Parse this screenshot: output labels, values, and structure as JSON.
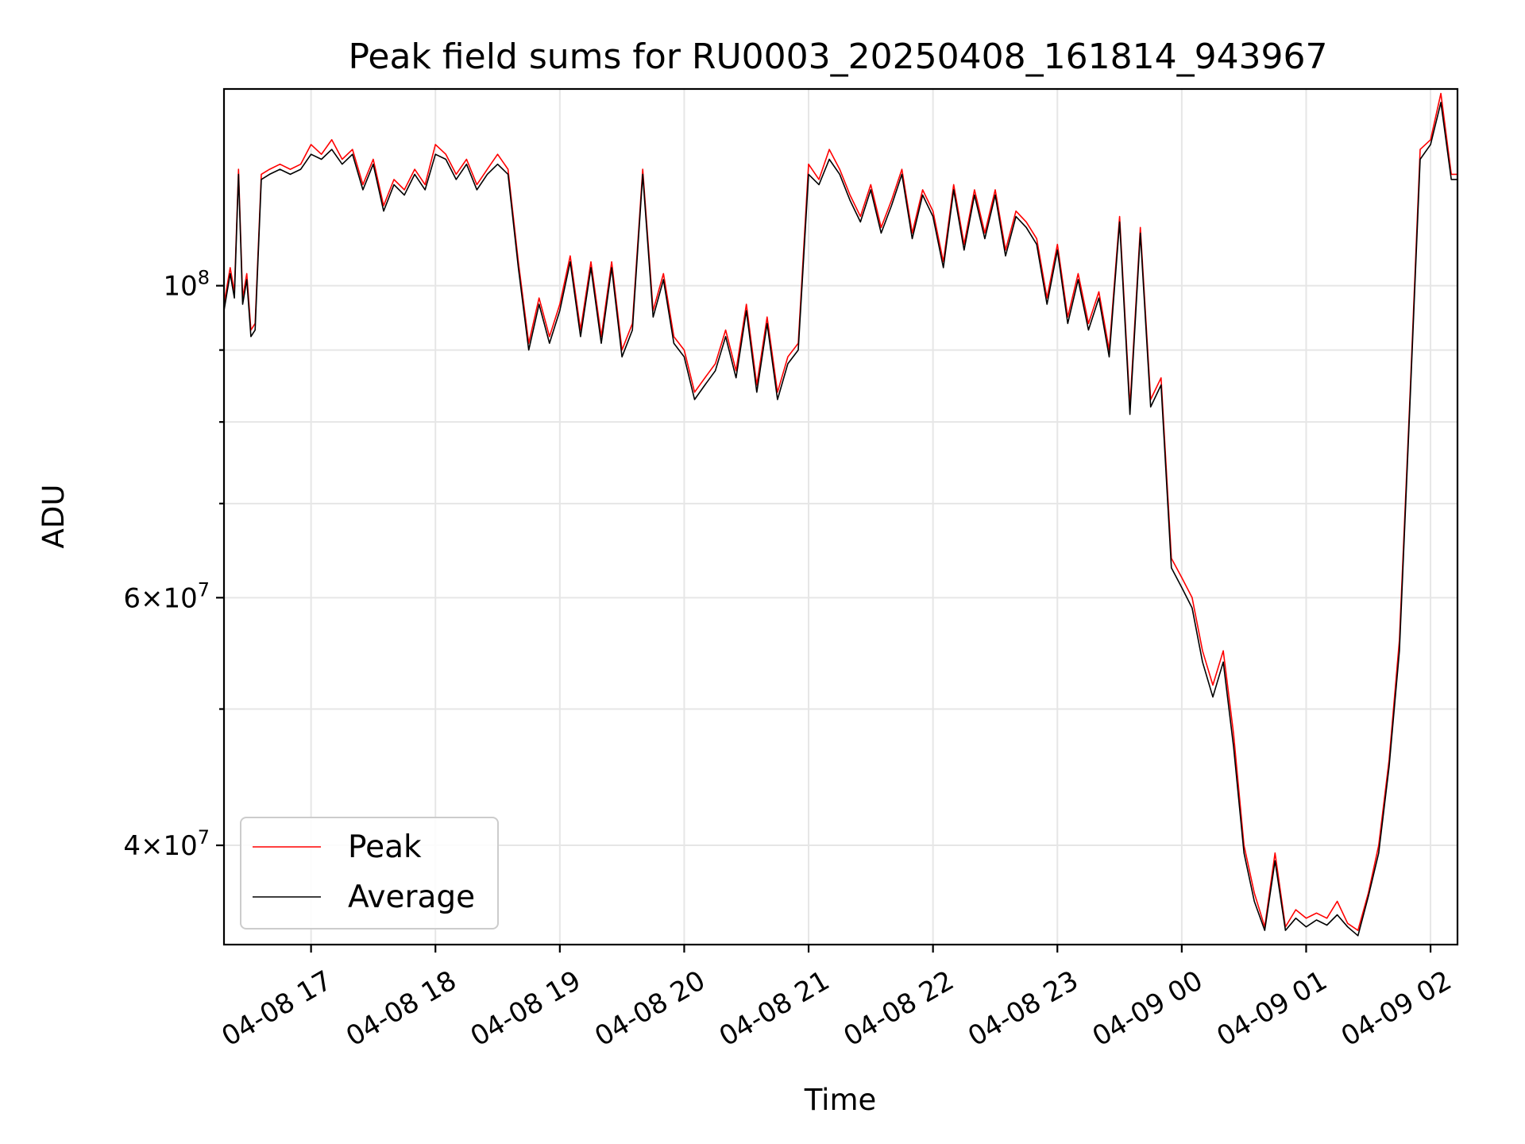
{
  "chart_data": {
    "type": "line",
    "title": "Peak field sums for RU0003_20250408_161814_943967",
    "xlabel": "Time",
    "ylabel": "ADU",
    "y_scale": "log",
    "ylim": [
      34000000,
      138000000
    ],
    "xlim": [
      "2025-04-08 16:18",
      "2025-04-09 02:13"
    ],
    "grid": true,
    "legend_position": "lower left",
    "x_ticks": [
      {
        "time": "2025-04-08 17:00",
        "label": "04-08 17"
      },
      {
        "time": "2025-04-08 18:00",
        "label": "04-08 18"
      },
      {
        "time": "2025-04-08 19:00",
        "label": "04-08 19"
      },
      {
        "time": "2025-04-08 20:00",
        "label": "04-08 20"
      },
      {
        "time": "2025-04-08 21:00",
        "label": "04-08 21"
      },
      {
        "time": "2025-04-08 22:00",
        "label": "04-08 22"
      },
      {
        "time": "2025-04-08 23:00",
        "label": "04-08 23"
      },
      {
        "time": "2025-04-09 00:00",
        "label": "04-09 00"
      },
      {
        "time": "2025-04-09 01:00",
        "label": "04-09 01"
      },
      {
        "time": "2025-04-09 02:00",
        "label": "04-09 02"
      }
    ],
    "y_ticks": [
      {
        "value": 100000000,
        "mantissa": "",
        "exponent": "8"
      },
      {
        "value": 60000000,
        "mantissa": "6",
        "exponent": "7"
      },
      {
        "value": 40000000,
        "mantissa": "4",
        "exponent": "7"
      }
    ],
    "y_minor_ticks": [
      50000000,
      70000000,
      80000000,
      90000000
    ],
    "series": [
      {
        "name": "Peak",
        "color": "#ff0000",
        "x": [
          "2025-04-08 16:18",
          "2025-04-08 16:21",
          "2025-04-08 16:23",
          "2025-04-08 16:25",
          "2025-04-08 16:27",
          "2025-04-08 16:29",
          "2025-04-08 16:31",
          "2025-04-08 16:33",
          "2025-04-08 16:36",
          "2025-04-08 16:40",
          "2025-04-08 16:45",
          "2025-04-08 16:50",
          "2025-04-08 16:55",
          "2025-04-08 17:00",
          "2025-04-08 17:05",
          "2025-04-08 17:10",
          "2025-04-08 17:15",
          "2025-04-08 17:20",
          "2025-04-08 17:25",
          "2025-04-08 17:30",
          "2025-04-08 17:35",
          "2025-04-08 17:40",
          "2025-04-08 17:45",
          "2025-04-08 17:50",
          "2025-04-08 17:55",
          "2025-04-08 18:00",
          "2025-04-08 18:05",
          "2025-04-08 18:10",
          "2025-04-08 18:15",
          "2025-04-08 18:20",
          "2025-04-08 18:25",
          "2025-04-08 18:30",
          "2025-04-08 18:35",
          "2025-04-08 18:40",
          "2025-04-08 18:45",
          "2025-04-08 18:50",
          "2025-04-08 18:55",
          "2025-04-08 19:00",
          "2025-04-08 19:05",
          "2025-04-08 19:10",
          "2025-04-08 19:15",
          "2025-04-08 19:20",
          "2025-04-08 19:25",
          "2025-04-08 19:30",
          "2025-04-08 19:35",
          "2025-04-08 19:40",
          "2025-04-08 19:45",
          "2025-04-08 19:50",
          "2025-04-08 19:55",
          "2025-04-08 20:00",
          "2025-04-08 20:05",
          "2025-04-08 20:10",
          "2025-04-08 20:15",
          "2025-04-08 20:20",
          "2025-04-08 20:25",
          "2025-04-08 20:30",
          "2025-04-08 20:35",
          "2025-04-08 20:40",
          "2025-04-08 20:45",
          "2025-04-08 20:50",
          "2025-04-08 20:55",
          "2025-04-08 21:00",
          "2025-04-08 21:05",
          "2025-04-08 21:10",
          "2025-04-08 21:15",
          "2025-04-08 21:20",
          "2025-04-08 21:25",
          "2025-04-08 21:30",
          "2025-04-08 21:35",
          "2025-04-08 21:40",
          "2025-04-08 21:45",
          "2025-04-08 21:50",
          "2025-04-08 21:55",
          "2025-04-08 22:00",
          "2025-04-08 22:05",
          "2025-04-08 22:10",
          "2025-04-08 22:15",
          "2025-04-08 22:20",
          "2025-04-08 22:25",
          "2025-04-08 22:30",
          "2025-04-08 22:35",
          "2025-04-08 22:40",
          "2025-04-08 22:45",
          "2025-04-08 22:50",
          "2025-04-08 22:55",
          "2025-04-08 23:00",
          "2025-04-08 23:05",
          "2025-04-08 23:10",
          "2025-04-08 23:15",
          "2025-04-08 23:20",
          "2025-04-08 23:25",
          "2025-04-08 23:30",
          "2025-04-08 23:35",
          "2025-04-08 23:40",
          "2025-04-08 23:45",
          "2025-04-08 23:50",
          "2025-04-08 23:55",
          "2025-04-09 00:00",
          "2025-04-09 00:05",
          "2025-04-09 00:10",
          "2025-04-09 00:15",
          "2025-04-09 00:20",
          "2025-04-09 00:25",
          "2025-04-09 00:30",
          "2025-04-09 00:35",
          "2025-04-09 00:40",
          "2025-04-09 00:45",
          "2025-04-09 00:50",
          "2025-04-09 00:55",
          "2025-04-09 01:00",
          "2025-04-09 01:05",
          "2025-04-09 01:10",
          "2025-04-09 01:15",
          "2025-04-09 01:20",
          "2025-04-09 01:25",
          "2025-04-09 01:30",
          "2025-04-09 01:35",
          "2025-04-09 01:40",
          "2025-04-09 01:45",
          "2025-04-09 01:50",
          "2025-04-09 01:55",
          "2025-04-09 02:00",
          "2025-04-09 02:05",
          "2025-04-09 02:10",
          "2025-04-09 02:13"
        ],
        "y": [
          97000000,
          103000000,
          99000000,
          121000000,
          98000000,
          102000000,
          93000000,
          94000000,
          120000000,
          121000000,
          122000000,
          121000000,
          122000000,
          126000000,
          124000000,
          127000000,
          123000000,
          125000000,
          118000000,
          123000000,
          114000000,
          119000000,
          117000000,
          121000000,
          118000000,
          126000000,
          124000000,
          120000000,
          123000000,
          118000000,
          121000000,
          124000000,
          121000000,
          104000000,
          91000000,
          98000000,
          92000000,
          97000000,
          105000000,
          93000000,
          104000000,
          92000000,
          104000000,
          90000000,
          94000000,
          121000000,
          96000000,
          102000000,
          92000000,
          90000000,
          84000000,
          86000000,
          88000000,
          93000000,
          87000000,
          97000000,
          85000000,
          95000000,
          84000000,
          89000000,
          91000000,
          122000000,
          119000000,
          125000000,
          121000000,
          116000000,
          112000000,
          118000000,
          110000000,
          115000000,
          121000000,
          109000000,
          117000000,
          113000000,
          104000000,
          118000000,
          107000000,
          117000000,
          109000000,
          117000000,
          106000000,
          113000000,
          111000000,
          108000000,
          98000000,
          107000000,
          95000000,
          102000000,
          94000000,
          99000000,
          90000000,
          112000000,
          82000000,
          110000000,
          83000000,
          86000000,
          64000000,
          62000000,
          60000000,
          55000000,
          52000000,
          55000000,
          48000000,
          40000000,
          37000000,
          35000000,
          39500000,
          35000000,
          36000000,
          35500000,
          35800000,
          35500000,
          36500000,
          35200000,
          34800000,
          37000000,
          40000000,
          46000000,
          56000000,
          83000000,
          125000000,
          127000000,
          137000000,
          120000000,
          120000000
        ]
      },
      {
        "name": "Average",
        "color": "#000000",
        "x": [
          "2025-04-08 16:18",
          "2025-04-08 16:21",
          "2025-04-08 16:23",
          "2025-04-08 16:25",
          "2025-04-08 16:27",
          "2025-04-08 16:29",
          "2025-04-08 16:31",
          "2025-04-08 16:33",
          "2025-04-08 16:36",
          "2025-04-08 16:40",
          "2025-04-08 16:45",
          "2025-04-08 16:50",
          "2025-04-08 16:55",
          "2025-04-08 17:00",
          "2025-04-08 17:05",
          "2025-04-08 17:10",
          "2025-04-08 17:15",
          "2025-04-08 17:20",
          "2025-04-08 17:25",
          "2025-04-08 17:30",
          "2025-04-08 17:35",
          "2025-04-08 17:40",
          "2025-04-08 17:45",
          "2025-04-08 17:50",
          "2025-04-08 17:55",
          "2025-04-08 18:00",
          "2025-04-08 18:05",
          "2025-04-08 18:10",
          "2025-04-08 18:15",
          "2025-04-08 18:20",
          "2025-04-08 18:25",
          "2025-04-08 18:30",
          "2025-04-08 18:35",
          "2025-04-08 18:40",
          "2025-04-08 18:45",
          "2025-04-08 18:50",
          "2025-04-08 18:55",
          "2025-04-08 19:00",
          "2025-04-08 19:05",
          "2025-04-08 19:10",
          "2025-04-08 19:15",
          "2025-04-08 19:20",
          "2025-04-08 19:25",
          "2025-04-08 19:30",
          "2025-04-08 19:35",
          "2025-04-08 19:40",
          "2025-04-08 19:45",
          "2025-04-08 19:50",
          "2025-04-08 19:55",
          "2025-04-08 20:00",
          "2025-04-08 20:05",
          "2025-04-08 20:10",
          "2025-04-08 20:15",
          "2025-04-08 20:20",
          "2025-04-08 20:25",
          "2025-04-08 20:30",
          "2025-04-08 20:35",
          "2025-04-08 20:40",
          "2025-04-08 20:45",
          "2025-04-08 20:50",
          "2025-04-08 20:55",
          "2025-04-08 21:00",
          "2025-04-08 21:05",
          "2025-04-08 21:10",
          "2025-04-08 21:15",
          "2025-04-08 21:20",
          "2025-04-08 21:25",
          "2025-04-08 21:30",
          "2025-04-08 21:35",
          "2025-04-08 21:40",
          "2025-04-08 21:45",
          "2025-04-08 21:50",
          "2025-04-08 21:55",
          "2025-04-08 22:00",
          "2025-04-08 22:05",
          "2025-04-08 22:10",
          "2025-04-08 22:15",
          "2025-04-08 22:20",
          "2025-04-08 22:25",
          "2025-04-08 22:30",
          "2025-04-08 22:35",
          "2025-04-08 22:40",
          "2025-04-08 22:45",
          "2025-04-08 22:50",
          "2025-04-08 22:55",
          "2025-04-08 23:00",
          "2025-04-08 23:05",
          "2025-04-08 23:10",
          "2025-04-08 23:15",
          "2025-04-08 23:20",
          "2025-04-08 23:25",
          "2025-04-08 23:30",
          "2025-04-08 23:35",
          "2025-04-08 23:40",
          "2025-04-08 23:45",
          "2025-04-08 23:50",
          "2025-04-08 23:55",
          "2025-04-09 00:00",
          "2025-04-09 00:05",
          "2025-04-09 00:10",
          "2025-04-09 00:15",
          "2025-04-09 00:20",
          "2025-04-09 00:25",
          "2025-04-09 00:30",
          "2025-04-09 00:35",
          "2025-04-09 00:40",
          "2025-04-09 00:45",
          "2025-04-09 00:50",
          "2025-04-09 00:55",
          "2025-04-09 01:00",
          "2025-04-09 01:05",
          "2025-04-09 01:10",
          "2025-04-09 01:15",
          "2025-04-09 01:20",
          "2025-04-09 01:25",
          "2025-04-09 01:30",
          "2025-04-09 01:35",
          "2025-04-09 01:40",
          "2025-04-09 01:45",
          "2025-04-09 01:50",
          "2025-04-09 01:55",
          "2025-04-09 02:00",
          "2025-04-09 02:05",
          "2025-04-09 02:10",
          "2025-04-09 02:13"
        ],
        "y": [
          96000000,
          102000000,
          98000000,
          120000000,
          97000000,
          101000000,
          92000000,
          93000000,
          119000000,
          120000000,
          121000000,
          120000000,
          121000000,
          124000000,
          123000000,
          125000000,
          122000000,
          124000000,
          117000000,
          122000000,
          113000000,
          118000000,
          116000000,
          120000000,
          117000000,
          124000000,
          123000000,
          119000000,
          122000000,
          117000000,
          120000000,
          122000000,
          120000000,
          103000000,
          90000000,
          97000000,
          91000000,
          96000000,
          104000000,
          92000000,
          103000000,
          91000000,
          103000000,
          89000000,
          93000000,
          120000000,
          95000000,
          101000000,
          91000000,
          89000000,
          83000000,
          85000000,
          87000000,
          92000000,
          86000000,
          96000000,
          84000000,
          94000000,
          83000000,
          88000000,
          90000000,
          120000000,
          118000000,
          123000000,
          120000000,
          115000000,
          111000000,
          117000000,
          109000000,
          114000000,
          120000000,
          108000000,
          116000000,
          112000000,
          103000000,
          117000000,
          106000000,
          116000000,
          108000000,
          116000000,
          105000000,
          112000000,
          110000000,
          107000000,
          97000000,
          106000000,
          94000000,
          101000000,
          93000000,
          98000000,
          89000000,
          111000000,
          81000000,
          109000000,
          82000000,
          85000000,
          63000000,
          61000000,
          59000000,
          54000000,
          51000000,
          54000000,
          47000000,
          39500000,
          36500000,
          34800000,
          39000000,
          34800000,
          35500000,
          35000000,
          35400000,
          35100000,
          35700000,
          35000000,
          34500000,
          36800000,
          39500000,
          45500000,
          55000000,
          82000000,
          123000000,
          126000000,
          135000000,
          119000000,
          119000000
        ]
      }
    ]
  }
}
